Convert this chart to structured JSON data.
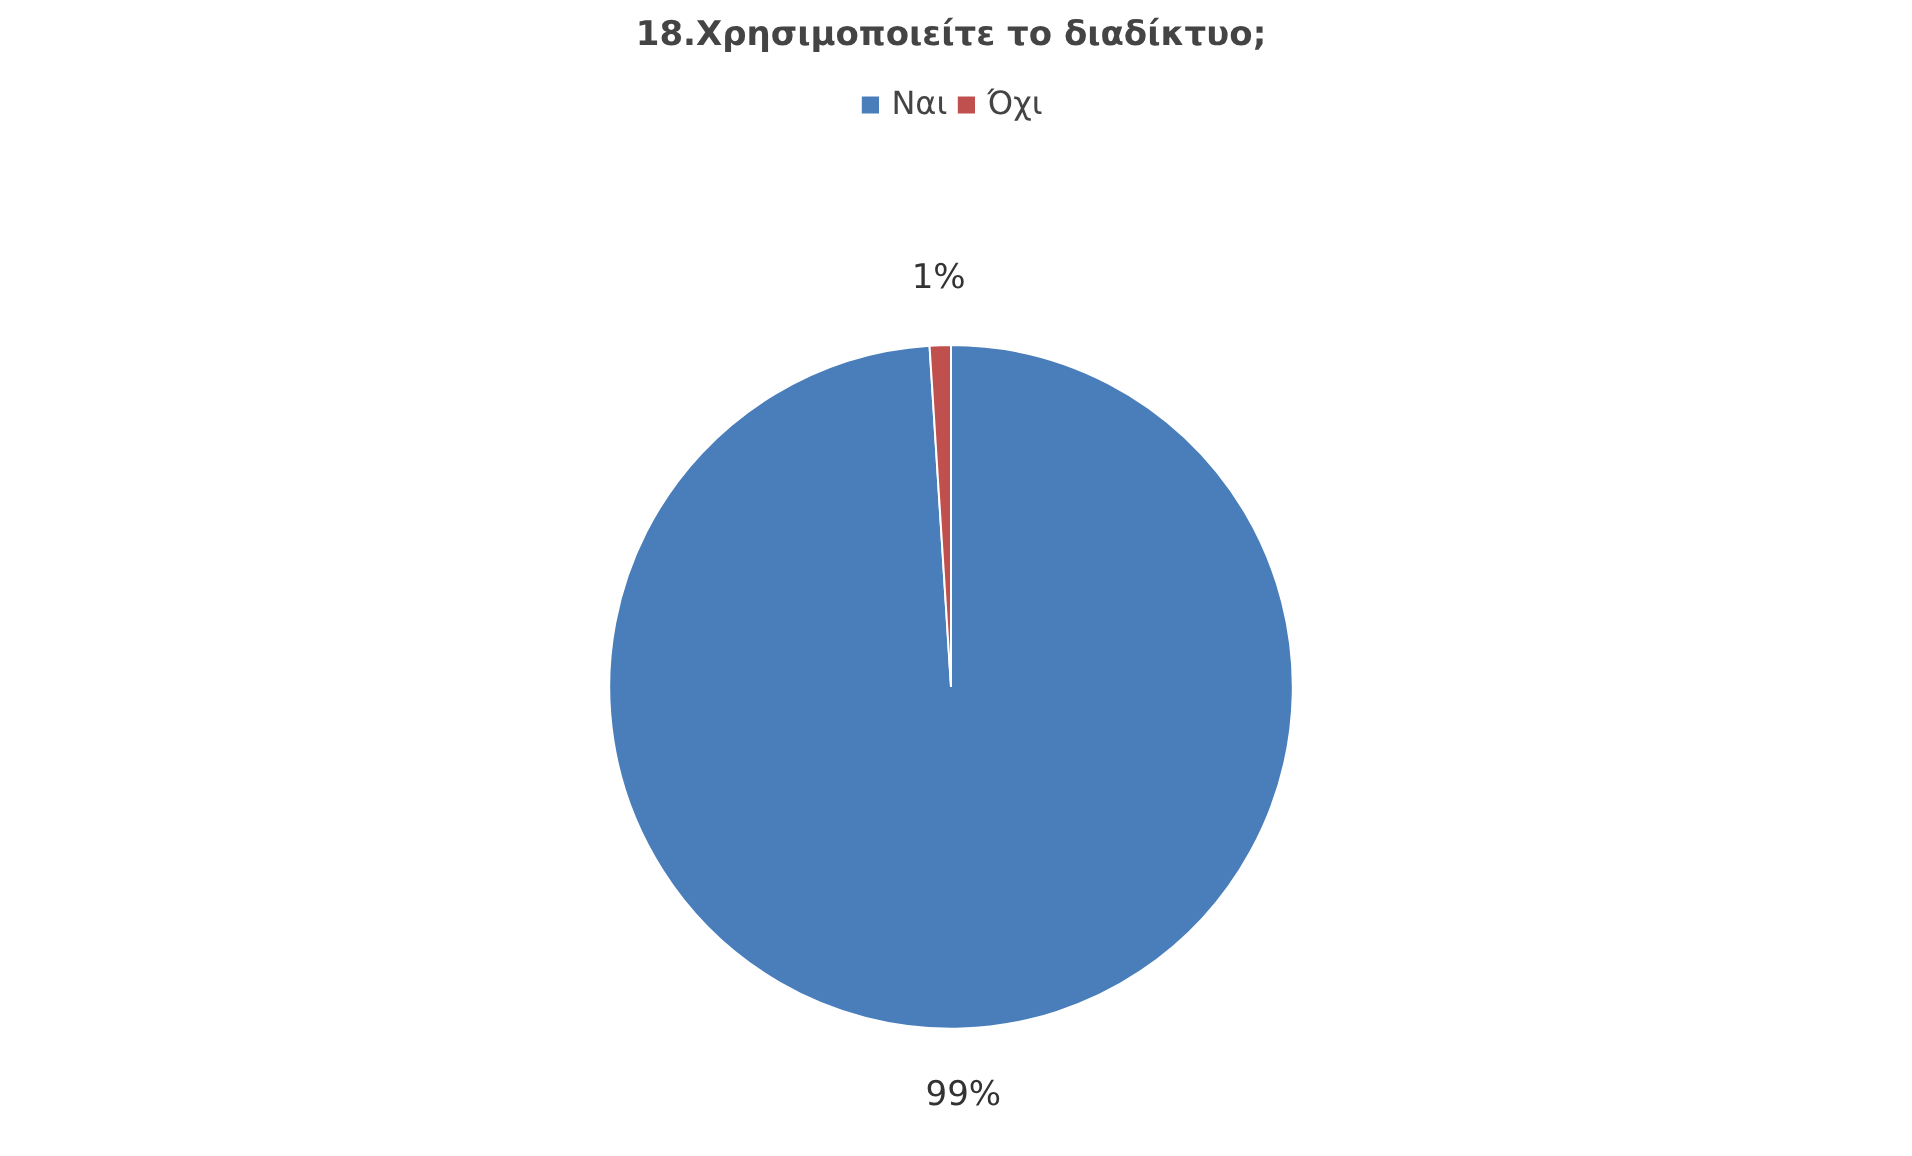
{
  "chart_data": {
    "type": "pie",
    "title": "18.Χρησιμοποιείτε το διαδίκτυο;",
    "categories": [
      "Ναι",
      "Όχι"
    ],
    "values": [
      99,
      1
    ],
    "colors": [
      "#4a7ebb",
      "#c0504d"
    ],
    "value_labels": [
      "99%",
      "1%"
    ],
    "legend": "top"
  }
}
